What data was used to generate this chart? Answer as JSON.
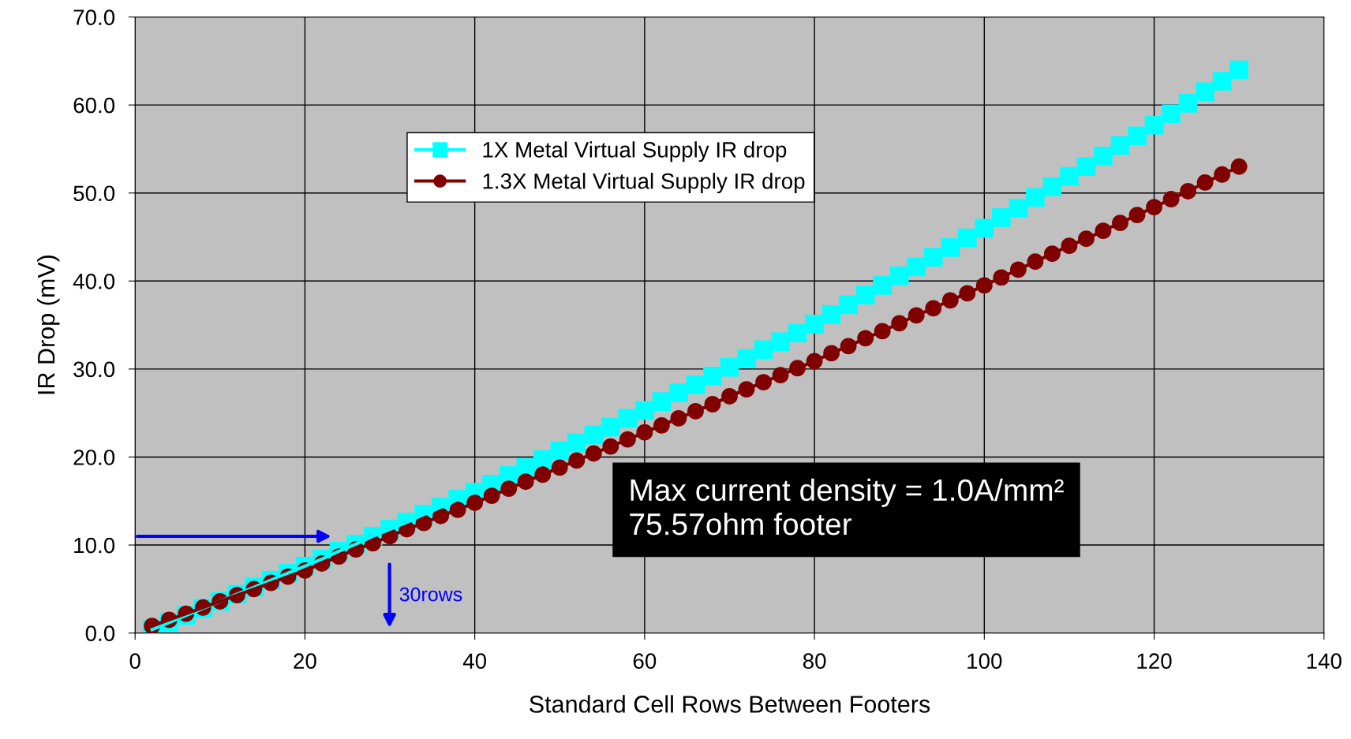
{
  "chart_data": {
    "type": "line",
    "xlabel": "Standard Cell Rows Between Footers",
    "ylabel": "IR Drop (mV)",
    "x": [
      2,
      4,
      6,
      8,
      10,
      12,
      14,
      16,
      18,
      20,
      22,
      24,
      26,
      28,
      30,
      32,
      34,
      36,
      38,
      40,
      42,
      44,
      46,
      48,
      50,
      52,
      54,
      56,
      58,
      60,
      62,
      64,
      66,
      68,
      70,
      72,
      74,
      76,
      78,
      80,
      82,
      84,
      86,
      88,
      90,
      92,
      94,
      96,
      98,
      100,
      102,
      104,
      106,
      108,
      110,
      112,
      114,
      116,
      118,
      120,
      122,
      124,
      126,
      128,
      130
    ],
    "series": [
      {
        "name": "1X Metal Virtual Supply IR drop",
        "color": "#00ffff",
        "marker": "square",
        "values": [
          0.4,
          1.2,
          2.0,
          2.8,
          3.6,
          4.4,
          5.2,
          6.0,
          6.8,
          7.6,
          8.4,
          9.3,
          10.1,
          11.0,
          11.8,
          12.6,
          13.5,
          14.3,
          15.2,
          16.0,
          16.9,
          17.9,
          18.8,
          19.7,
          20.7,
          21.6,
          22.5,
          23.4,
          24.4,
          25.3,
          26.3,
          27.3,
          28.2,
          29.2,
          30.2,
          31.2,
          32.2,
          33.1,
          34.1,
          35.1,
          36.2,
          37.3,
          38.4,
          39.5,
          40.6,
          41.6,
          42.7,
          43.8,
          44.9,
          46.0,
          47.2,
          48.3,
          49.5,
          50.7,
          51.9,
          53.0,
          54.2,
          55.4,
          56.5,
          57.7,
          59.0,
          60.2,
          61.5,
          62.7,
          64.0
        ]
      },
      {
        "name": "1.3X Metal Virtual Supply IR drop",
        "color": "#800000",
        "marker": "circle",
        "values": [
          0.8,
          1.5,
          2.2,
          2.9,
          3.6,
          4.3,
          5.0,
          5.7,
          6.4,
          7.1,
          7.9,
          8.7,
          9.5,
          10.2,
          11.0,
          11.8,
          12.5,
          13.3,
          14.0,
          14.8,
          15.6,
          16.4,
          17.2,
          18.0,
          18.8,
          19.6,
          20.4,
          21.2,
          22.0,
          22.8,
          23.6,
          24.4,
          25.2,
          26.0,
          26.9,
          27.7,
          28.5,
          29.3,
          30.1,
          30.9,
          31.8,
          32.6,
          33.5,
          34.3,
          35.2,
          36.1,
          36.9,
          37.8,
          38.6,
          39.5,
          40.4,
          41.3,
          42.2,
          43.1,
          44.0,
          44.8,
          45.7,
          46.6,
          47.5,
          48.4,
          49.3,
          50.2,
          51.2,
          52.1,
          53.0
        ]
      }
    ],
    "xlim": [
      0,
      140
    ],
    "xticks": [
      0,
      20,
      40,
      60,
      80,
      100,
      120,
      140
    ],
    "ylim": [
      0,
      70
    ],
    "yticks": [
      {
        "value": 0,
        "label": "0.0"
      },
      {
        "value": 10,
        "label": "10.0"
      },
      {
        "value": 20,
        "label": "20.0"
      },
      {
        "value": 30,
        "label": "30.0"
      },
      {
        "value": 40,
        "label": "40.0"
      },
      {
        "value": 50,
        "label": "50.0"
      },
      {
        "value": 60,
        "label": "60.0"
      },
      {
        "value": 70,
        "label": "70.0"
      }
    ],
    "annotations": [
      "30rows",
      "Max current density = 1.0A/mm²\n75.57ohm footer"
    ],
    "grid": true,
    "legend": "top",
    "line_style": "solid"
  }
}
